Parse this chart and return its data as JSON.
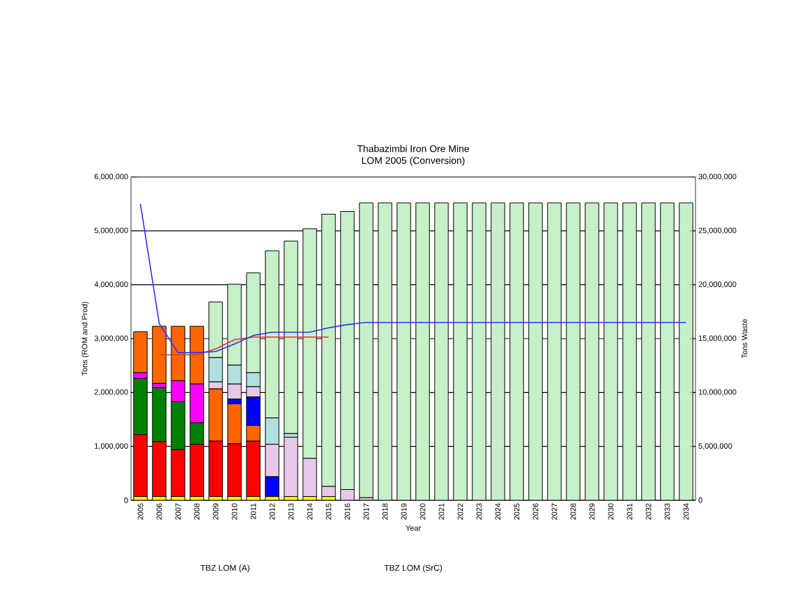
{
  "chart_data": {
    "type": "bar",
    "stacked": true,
    "title": "Thabazimbi Iron Ore Mine",
    "subtitle": "LOM 2005 (Conversion)",
    "xlabel": "Year",
    "ylabel": "Tons (ROM and Prod)",
    "y2label": "Tons Waste",
    "categories": [
      "2005",
      "2006",
      "2007",
      "2008",
      "2009",
      "2010",
      "2011",
      "2012",
      "2013",
      "2014",
      "2015",
      "2016",
      "2017",
      "2018",
      "2019",
      "2020",
      "2021",
      "2022",
      "2023",
      "2024",
      "2025",
      "2026",
      "2027",
      "2028",
      "2029",
      "2030",
      "2031",
      "2032",
      "2033",
      "2034"
    ],
    "ylim": [
      0,
      6000000
    ],
    "yticks": [
      {
        "value": 0,
        "label": "0"
      },
      {
        "value": 1000000,
        "label": "1,000,000"
      },
      {
        "value": 2000000,
        "label": "2,000,000"
      },
      {
        "value": 3000000,
        "label": "3,000,000"
      },
      {
        "value": 4000000,
        "label": "4,000,000"
      },
      {
        "value": 5000000,
        "label": "5,000,000"
      },
      {
        "value": 6000000,
        "label": "6,000,000"
      }
    ],
    "y2lim": [
      0,
      30000000
    ],
    "y2ticks": [
      {
        "value": 0,
        "label": "0"
      },
      {
        "value": 5000000,
        "label": "5,000,000"
      },
      {
        "value": 10000000,
        "label": "10,000,000"
      },
      {
        "value": 15000000,
        "label": "15,000,000"
      },
      {
        "value": 20000000,
        "label": "20,000,000"
      },
      {
        "value": 25000000,
        "label": "25,000,000"
      },
      {
        "value": 30000000,
        "label": "30,000,000"
      }
    ],
    "grid": "y",
    "annotations": [
      "TBZ LOM (A)",
      "TBZ LOM (SrC)"
    ],
    "series": [
      {
        "color": "#ffff00",
        "values": [
          70000,
          70000,
          70000,
          70000,
          70000,
          70000,
          70000,
          70000,
          70000,
          70000,
          70000,
          null,
          null,
          null,
          null,
          null,
          null,
          null,
          null,
          null,
          null,
          null,
          null,
          null,
          null,
          null,
          null,
          null,
          null,
          null
        ]
      },
      {
        "color": "#ff0000",
        "values": [
          1150000,
          1020000,
          870000,
          970000,
          1030000,
          980000,
          1030000,
          null,
          null,
          null,
          null,
          null,
          null,
          null,
          null,
          null,
          null,
          null,
          null,
          null,
          null,
          null,
          null,
          null,
          null,
          null,
          null,
          null,
          null,
          null
        ]
      },
      {
        "color": "#008000",
        "values": [
          1040000,
          1000000,
          890000,
          400000,
          null,
          null,
          null,
          null,
          null,
          null,
          null,
          null,
          null,
          null,
          null,
          null,
          null,
          null,
          null,
          null,
          null,
          null,
          null,
          null,
          null,
          null,
          null,
          null,
          null,
          null
        ]
      },
      {
        "color": "#ff00ff",
        "values": [
          110000,
          80000,
          390000,
          720000,
          null,
          null,
          null,
          null,
          null,
          null,
          null,
          null,
          null,
          null,
          null,
          null,
          null,
          null,
          null,
          null,
          null,
          null,
          null,
          null,
          null,
          null,
          null,
          null,
          null,
          null
        ]
      },
      {
        "color": "#ff6600",
        "values": [
          760000,
          1060000,
          1010000,
          1070000,
          970000,
          740000,
          290000,
          null,
          null,
          null,
          null,
          null,
          null,
          null,
          null,
          null,
          null,
          null,
          null,
          null,
          null,
          null,
          null,
          null,
          null,
          null,
          null,
          null,
          null,
          null
        ]
      },
      {
        "color": "#0000ff",
        "values": [
          null,
          null,
          null,
          null,
          null,
          90000,
          530000,
          370000,
          null,
          null,
          null,
          null,
          null,
          null,
          null,
          null,
          null,
          null,
          null,
          null,
          null,
          null,
          null,
          null,
          null,
          null,
          null,
          null,
          null,
          null
        ]
      },
      {
        "color": "#e8c8e8",
        "values": [
          null,
          null,
          null,
          null,
          130000,
          280000,
          190000,
          600000,
          1100000,
          710000,
          190000,
          200000,
          50000,
          null,
          null,
          null,
          null,
          null,
          null,
          null,
          null,
          null,
          null,
          null,
          null,
          null,
          null,
          null,
          null,
          null
        ]
      },
      {
        "color": "#b0e0e0",
        "values": [
          null,
          null,
          null,
          null,
          450000,
          350000,
          260000,
          490000,
          70000,
          null,
          null,
          null,
          null,
          null,
          null,
          null,
          null,
          null,
          null,
          null,
          null,
          null,
          null,
          null,
          null,
          null,
          null,
          null,
          null,
          null
        ]
      },
      {
        "color": "#c8f0c8",
        "values": [
          null,
          null,
          null,
          null,
          1030000,
          1500000,
          1850000,
          3100000,
          3570000,
          4260000,
          5050000,
          5160000,
          5470000,
          5520000,
          5520000,
          5520000,
          5520000,
          5520000,
          5520000,
          5520000,
          5520000,
          5520000,
          5520000,
          5520000,
          5520000,
          5520000,
          5520000,
          5520000,
          5520000,
          5520000
        ]
      },
      {
        "type": "line",
        "color": "#e03030",
        "values": [
          null,
          2700000,
          2700000,
          2700000,
          2810000,
          2980000,
          3030000,
          3030000,
          3030000,
          3030000,
          3030000,
          null,
          null,
          null,
          null,
          null,
          null,
          null,
          null,
          null,
          null,
          null,
          null,
          null,
          null,
          null,
          null,
          null,
          null,
          null
        ]
      },
      {
        "type": "line",
        "axis": "y2",
        "color": "#3030ff",
        "values": [
          27500000,
          16400000,
          13700000,
          13700000,
          13800000,
          14500000,
          15300000,
          15600000,
          15600000,
          15600000,
          16000000,
          16300000,
          16500000,
          16500000,
          16500000,
          16500000,
          16500000,
          16500000,
          16500000,
          16500000,
          16500000,
          16500000,
          16500000,
          16500000,
          16500000,
          16500000,
          16500000,
          16500000,
          16500000,
          16500000
        ]
      }
    ]
  }
}
